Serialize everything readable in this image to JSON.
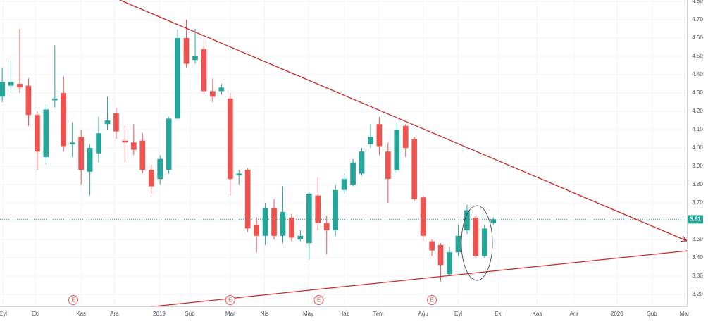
{
  "chart_data": {
    "type": "candlestick",
    "x": [
      0,
      1,
      2,
      3,
      4,
      5,
      6,
      7,
      8,
      9,
      10,
      11,
      12,
      13,
      14,
      15,
      16,
      17,
      18,
      19,
      20,
      21,
      22,
      23,
      24,
      25,
      26,
      27,
      28,
      29,
      30,
      31,
      32,
      33,
      34,
      35,
      36,
      37,
      38,
      39,
      40,
      41,
      42,
      43,
      44,
      45,
      46,
      47,
      48,
      49,
      50,
      51,
      52,
      53,
      54,
      55,
      56
    ],
    "open": [
      4.28,
      4.34,
      4.35,
      4.34,
      4.18,
      3.95,
      4.26,
      4.3,
      4.02,
      4.06,
      3.87,
      3.97,
      4.13,
      4.19,
      4.04,
      4.03,
      4.04,
      3.88,
      3.83,
      3.88,
      4.16,
      4.6,
      4.48,
      4.54,
      4.31,
      4.31,
      4.27,
      3.85,
      3.88,
      3.58,
      3.52,
      3.67,
      3.52,
      3.62,
      3.5,
      3.48,
      3.74,
      3.59,
      3.55,
      3.77,
      3.8,
      3.86,
      4.02,
      4.13,
      3.98,
      3.88,
      4.12,
      4.05,
      3.73,
      3.49,
      3.47,
      3.31,
      3.43,
      3.55,
      3.62,
      3.41,
      3.59
    ],
    "high": [
      4.44,
      4.48,
      4.65,
      4.38,
      4.2,
      4.24,
      4.56,
      4.39,
      4.14,
      4.1,
      4.02,
      4.17,
      4.28,
      4.22,
      4.12,
      4.13,
      4.08,
      3.91,
      3.96,
      4.17,
      4.65,
      4.7,
      4.65,
      4.6,
      4.38,
      4.35,
      4.3,
      3.88,
      3.89,
      3.62,
      3.7,
      3.72,
      3.79,
      3.64,
      3.55,
      3.76,
      3.84,
      3.63,
      3.8,
      3.86,
      3.94,
      4.0,
      4.13,
      4.17,
      4.03,
      4.14,
      4.13,
      4.06,
      3.74,
      3.5,
      3.48,
      3.46,
      3.58,
      3.69,
      3.63,
      3.58,
      3.62
    ],
    "low": [
      4.25,
      4.3,
      4.3,
      4.12,
      3.88,
      3.91,
      4.22,
      3.98,
      3.95,
      3.8,
      3.74,
      3.92,
      4.1,
      4.05,
      3.92,
      3.96,
      3.86,
      3.75,
      3.8,
      3.86,
      4.16,
      4.44,
      4.46,
      4.29,
      4.25,
      4.29,
      3.74,
      3.8,
      3.54,
      3.43,
      3.47,
      3.5,
      3.48,
      3.49,
      3.49,
      3.39,
      3.55,
      3.42,
      3.52,
      3.75,
      3.79,
      3.85,
      4.0,
      3.96,
      3.7,
      3.86,
      3.95,
      3.71,
      3.49,
      3.41,
      3.27,
      3.3,
      3.41,
      3.53,
      3.4,
      3.4,
      3.58
    ],
    "close": [
      4.36,
      4.36,
      4.33,
      4.18,
      3.98,
      4.21,
      4.27,
      4.01,
      4.03,
      3.88,
      4.0,
      4.08,
      4.15,
      4.09,
      4.03,
      3.99,
      3.88,
      3.79,
      3.94,
      4.16,
      4.6,
      4.46,
      4.5,
      4.31,
      4.28,
      4.33,
      3.83,
      3.86,
      3.56,
      3.52,
      3.67,
      3.52,
      3.65,
      3.51,
      3.52,
      3.75,
      3.59,
      3.55,
      3.77,
      3.83,
      3.92,
      3.98,
      4.06,
      4.01,
      3.83,
      4.1,
      4.0,
      3.72,
      3.52,
      3.44,
      3.36,
      3.43,
      3.52,
      3.66,
      3.41,
      3.56,
      3.61
    ],
    "up_color": "#26a69a",
    "down_color": "#ef5350",
    "last_price": {
      "value": 3.61,
      "label": "3.61"
    },
    "events": [
      {
        "x": 8.1,
        "label": "E"
      },
      {
        "x": 26.0,
        "label": "E"
      },
      {
        "x": 36.1,
        "label": "E"
      },
      {
        "x": 49.0,
        "label": "E"
      }
    ],
    "xlim": [
      -0.25,
      78.07
    ],
    "ylim": [
      3.146,
      4.808
    ],
    "xticks": [
      {
        "value": 0.1,
        "label": "Eyl"
      },
      {
        "value": 3.8,
        "label": "Eki"
      },
      {
        "value": 9.0,
        "label": "Kas"
      },
      {
        "value": 12.8,
        "label": "Ara"
      },
      {
        "value": 17.9,
        "label": "2019"
      },
      {
        "value": 21.4,
        "label": "Şub"
      },
      {
        "value": 26.0,
        "label": "Mar"
      },
      {
        "value": 29.9,
        "label": "Nis"
      },
      {
        "value": 34.9,
        "label": "May"
      },
      {
        "value": 39.0,
        "label": "Haz"
      },
      {
        "value": 42.9,
        "label": "Tem"
      },
      {
        "value": 48.0,
        "label": "Ağu"
      },
      {
        "value": 52.0,
        "label": "Eyl"
      },
      {
        "value": 56.6,
        "label": "Eki"
      },
      {
        "value": 61.0,
        "label": "Kas"
      },
      {
        "value": 65.2,
        "label": "Ara"
      },
      {
        "value": 70.1,
        "label": "2020"
      },
      {
        "value": 74.1,
        "label": "Şub"
      },
      {
        "value": 77.8,
        "label": "Mar"
      }
    ],
    "yticks": [
      {
        "value": 3.2,
        "label": "3.20"
      },
      {
        "value": 3.3,
        "label": "3.30"
      },
      {
        "value": 3.4,
        "label": "3.40"
      },
      {
        "value": 3.5,
        "label": "3.50"
      },
      {
        "value": 3.6,
        "label": "3.60"
      },
      {
        "value": 3.7,
        "label": "3.70"
      },
      {
        "value": 3.8,
        "label": "3.80"
      },
      {
        "value": 3.9,
        "label": "3.90"
      },
      {
        "value": 4.0,
        "label": "4.00"
      },
      {
        "value": 4.1,
        "label": "4.10"
      },
      {
        "value": 4.2,
        "label": "4.20"
      },
      {
        "value": 4.3,
        "label": "4.30"
      },
      {
        "value": 4.4,
        "label": "4.40"
      },
      {
        "value": 4.5,
        "label": "4.50"
      },
      {
        "value": 4.6,
        "label": "4.60"
      },
      {
        "value": 4.7,
        "label": "4.70"
      },
      {
        "value": 4.8,
        "label": "4.80"
      }
    ],
    "grid": true
  }
}
